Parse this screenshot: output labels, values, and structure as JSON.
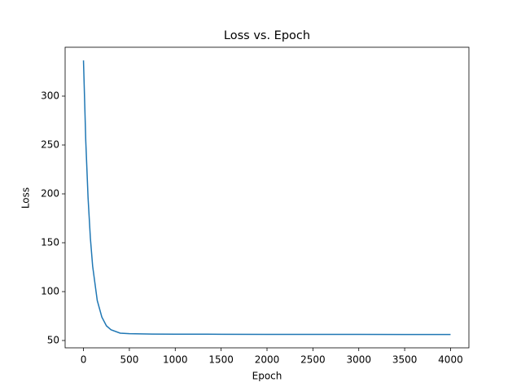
{
  "chart_data": {
    "type": "line",
    "title": "Loss vs. Epoch",
    "x_label": "Epoch",
    "y_label": "Loss",
    "x": [
      0,
      25,
      50,
      75,
      100,
      150,
      200,
      250,
      300,
      400,
      500,
      750,
      1000,
      1500,
      2000,
      2500,
      3000,
      3500,
      4000
    ],
    "series": [
      {
        "name": "Loss",
        "color": "#1f77b4",
        "values": [
          336.5,
          254,
          196,
          155,
          126,
          91,
          74,
          65,
          61,
          57.5,
          57,
          56.6,
          56.5,
          56.4,
          56.3,
          56.2,
          56.2,
          56.1,
          56.1
        ]
      }
    ],
    "xlim": [
      -200,
      4200
    ],
    "xticks": [
      0,
      500,
      1000,
      1500,
      2000,
      2500,
      3000,
      3500,
      4000
    ],
    "ylim": [
      42.5,
      350
    ],
    "yticks": [
      50,
      100,
      150,
      200,
      250,
      300
    ],
    "grid": false
  }
}
